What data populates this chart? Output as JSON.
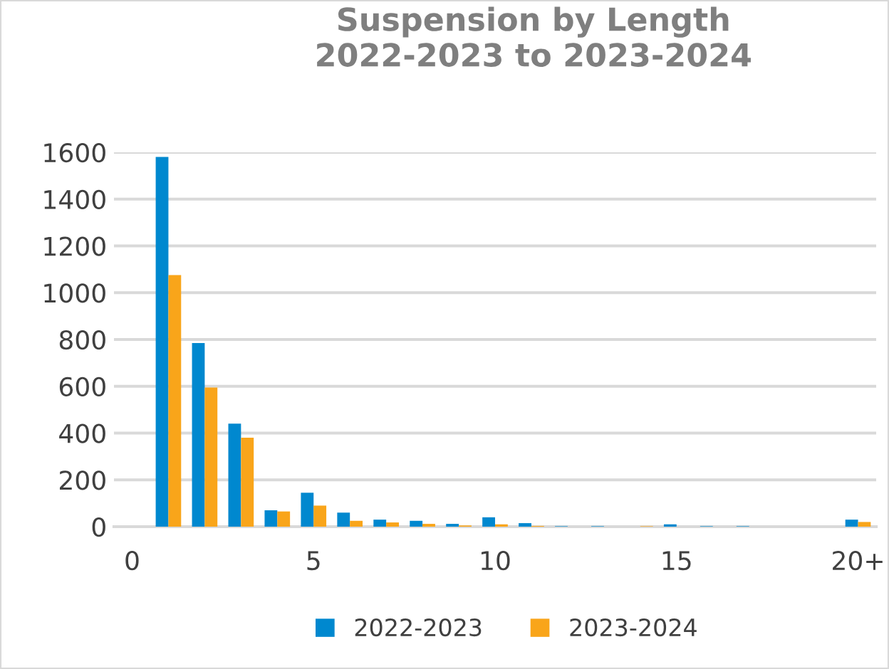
{
  "chart_data": {
    "type": "bar",
    "title": "Suspension by Length\n2022-2023 to 2023-2024",
    "categories": [
      "0",
      null,
      null,
      null,
      null,
      "5",
      null,
      null,
      null,
      null,
      "10",
      null,
      null,
      null,
      null,
      "15",
      null,
      null,
      null,
      null,
      "20+"
    ],
    "series": [
      {
        "name": "2022-2023",
        "color": "#0088cf",
        "values": [
          null,
          1580,
          785,
          440,
          70,
          145,
          60,
          30,
          25,
          12,
          40,
          15,
          2,
          2,
          null,
          10,
          2,
          2,
          null,
          null,
          30
        ]
      },
      {
        "name": "2023-2024",
        "color": "#f9a51a",
        "values": [
          null,
          1075,
          595,
          380,
          65,
          90,
          25,
          18,
          12,
          5,
          10,
          3,
          null,
          null,
          2,
          null,
          null,
          null,
          null,
          null,
          20
        ]
      }
    ],
    "ylim": [
      0,
      1600
    ],
    "yticks": [
      0,
      200,
      400,
      600,
      800,
      1000,
      1200,
      1400,
      1600
    ],
    "grid": "y",
    "legend": "bottom"
  }
}
